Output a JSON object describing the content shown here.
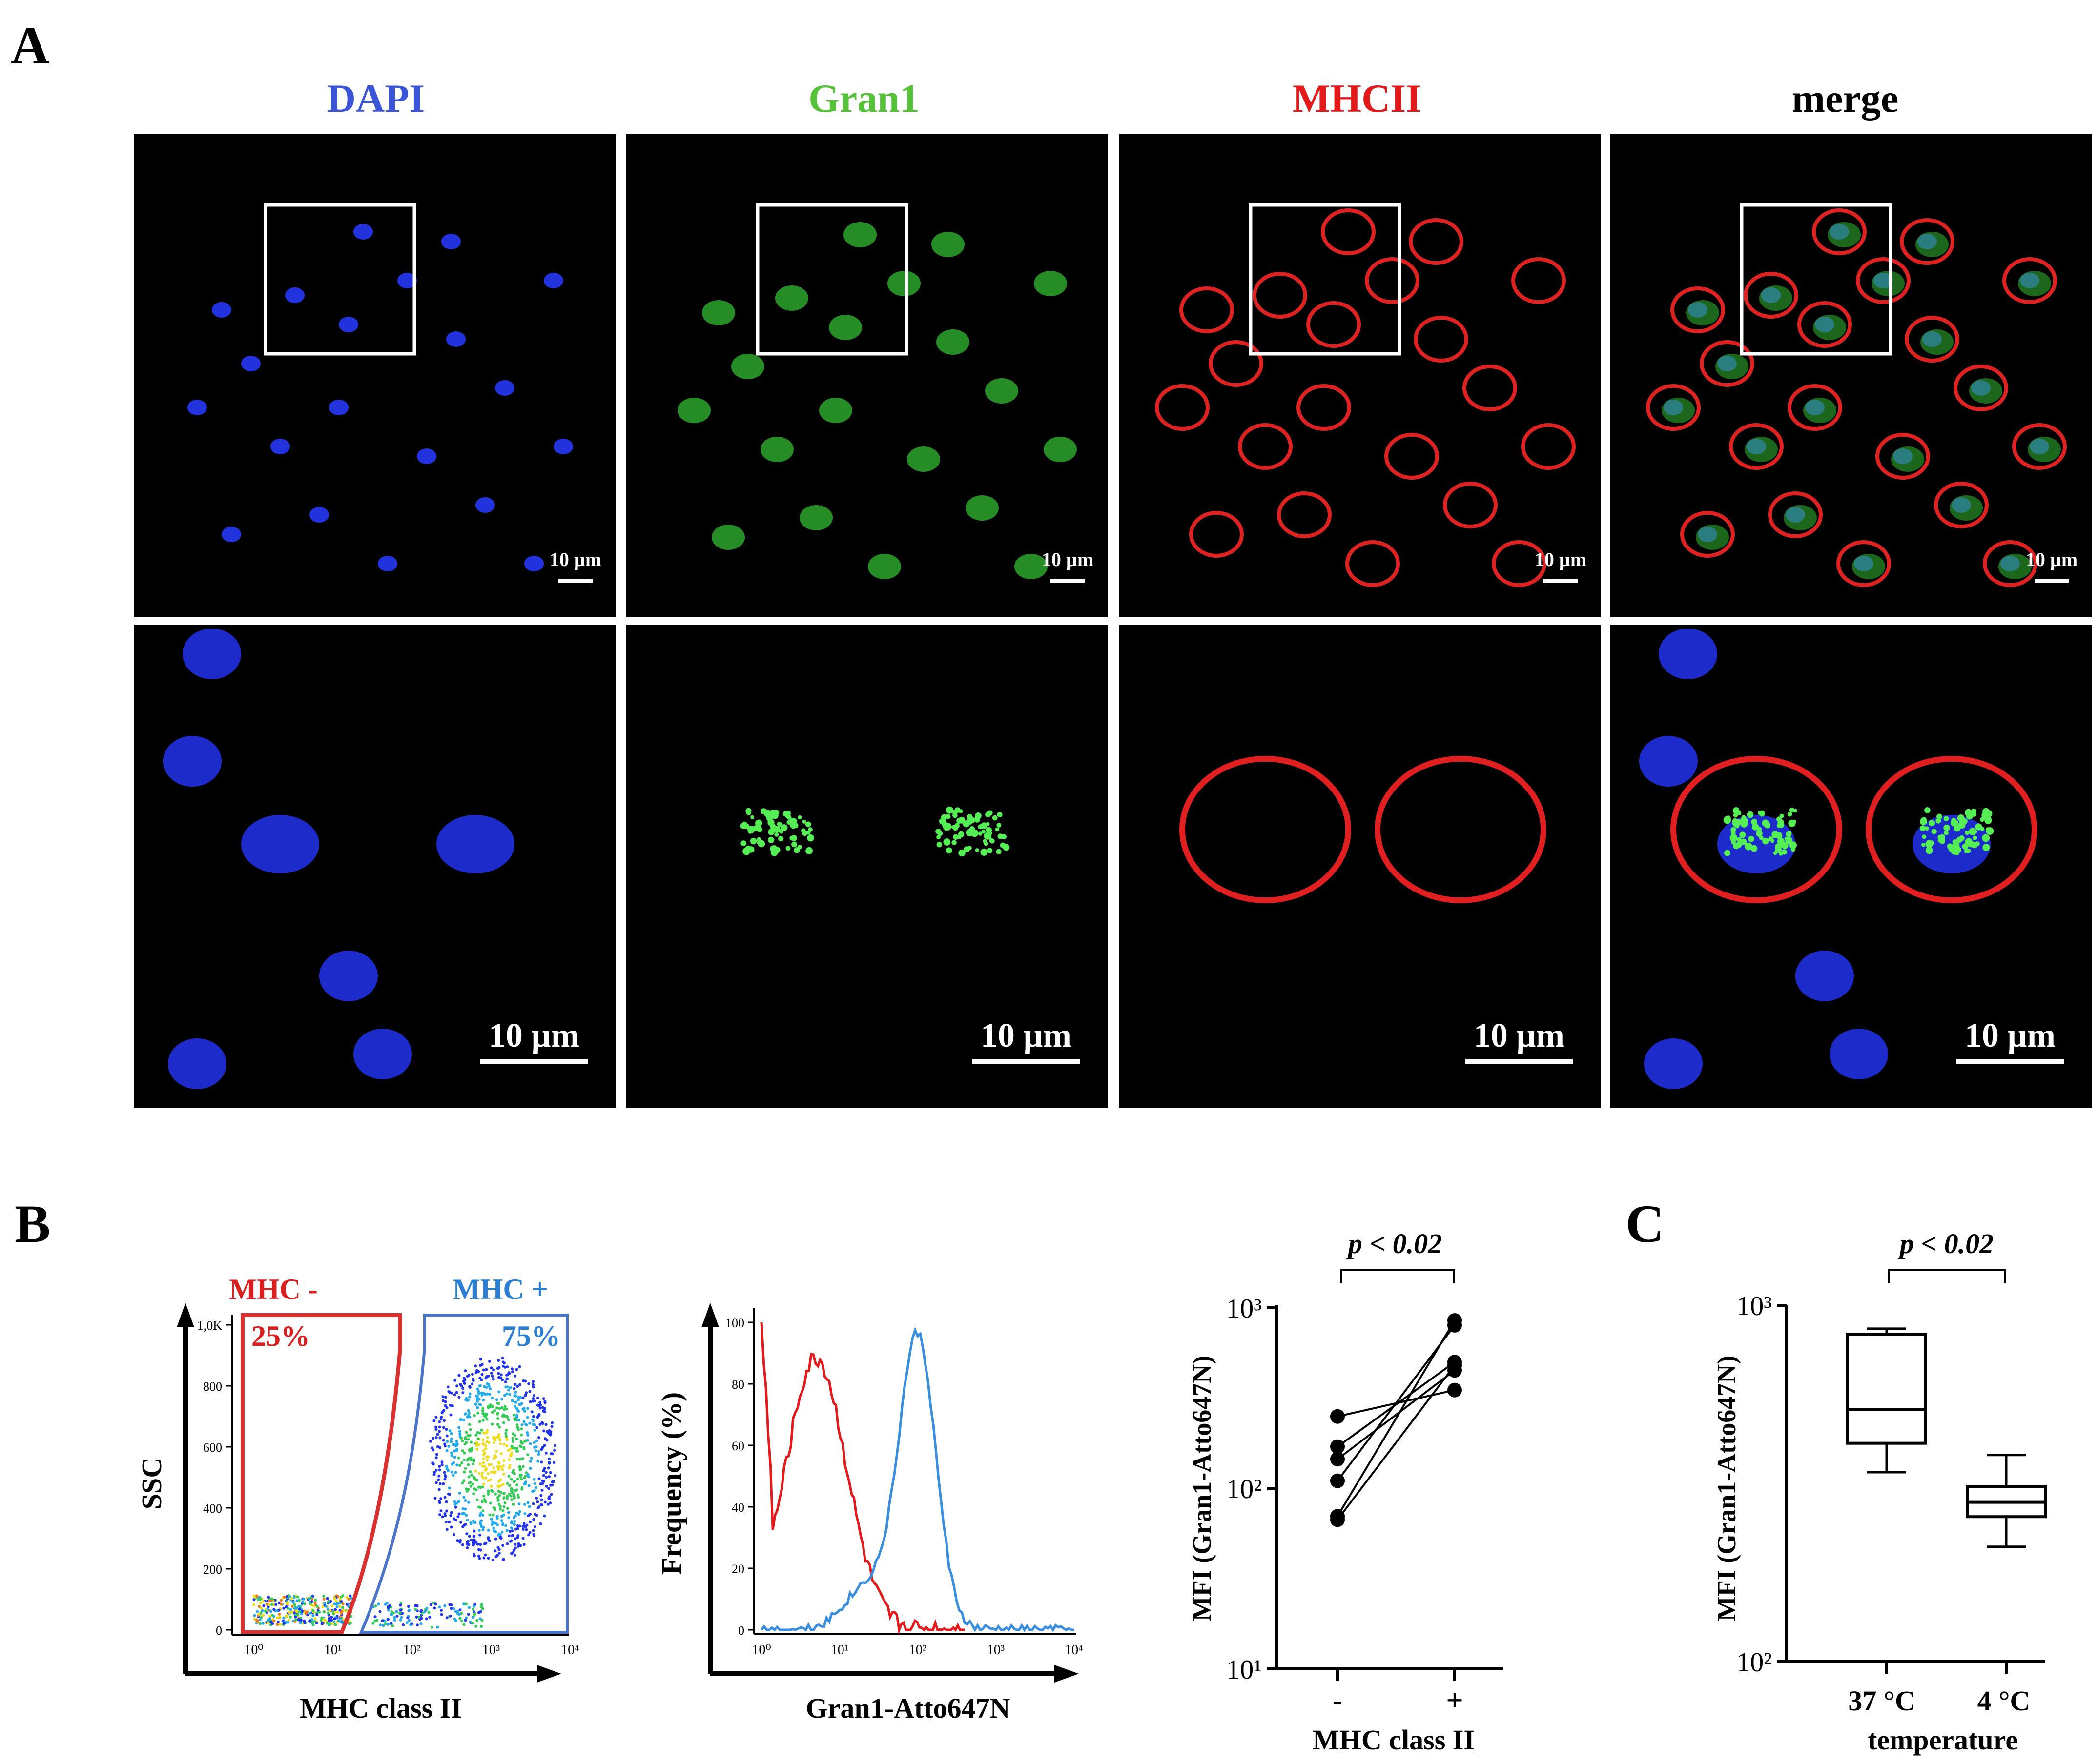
{
  "panels": {
    "A": {
      "letter": "A",
      "channels": [
        {
          "name": "DAPI",
          "color": "#3a55d8"
        },
        {
          "name": "Gran1",
          "color": "#55c23a"
        },
        {
          "name": "MHCII",
          "color": "#e31a1c"
        },
        {
          "name": "merge",
          "color": "#000000"
        }
      ],
      "scalebar_top": "10 µm",
      "scalebar_bottom": "10 µm"
    },
    "B": {
      "letter": "B",
      "dotplot": {
        "ylabel": "SSC",
        "xlabel": "MHC class II",
        "gate_neg_label": "MHC -",
        "gate_pos_label": "MHC +",
        "gate_neg_pct": "25%",
        "gate_pos_pct": "75%",
        "y_ticks": [
          "0",
          "200",
          "400",
          "600",
          "800",
          "1,0K"
        ],
        "x_ticks": [
          "10⁰",
          "10¹",
          "10²",
          "10³",
          "10⁴"
        ]
      },
      "histogram": {
        "ylabel": "Frequency (%)",
        "xlabel": "Gran1-Atto647N",
        "y_ticks": [
          "0",
          "20",
          "40",
          "60",
          "80",
          "100"
        ],
        "x_ticks": [
          "10⁰",
          "10¹",
          "10²",
          "10³",
          "10⁴"
        ],
        "series_colors": {
          "neg": "#e31a1c",
          "pos": "#3a8ee0"
        }
      },
      "paired": {
        "ylabel": "MFI (Gran1-Atto647N)",
        "xlabel": "MHC class II",
        "categories": [
          "-",
          "+"
        ],
        "pvalue": "p < 0.02",
        "y_ticks": [
          "10¹",
          "10²",
          "10³"
        ]
      }
    },
    "C": {
      "letter": "C",
      "ylabel": "MFI (Gran1-Atto647N)",
      "xlabel": "temperature",
      "categories": [
        "37 °C",
        "4 °C"
      ],
      "pvalue": "p < 0.02",
      "y_ticks": [
        "10²",
        "10³"
      ]
    }
  },
  "chart_data": [
    {
      "type": "line",
      "title": "",
      "xlabel": "MHC class II",
      "ylabel": "MFI (Gran1-Atto647N)",
      "yscale": "log",
      "ylim": [
        10,
        1000
      ],
      "categories": [
        "-",
        "+"
      ],
      "series": [
        {
          "values": [
            250,
            350
          ]
        },
        {
          "values": [
            170,
            500
          ]
        },
        {
          "values": [
            145,
            450
          ]
        },
        {
          "values": [
            110,
            800
          ]
        },
        {
          "values": [
            70,
            850
          ]
        },
        {
          "values": [
            67,
            480
          ]
        }
      ],
      "annotation": "p < 0.02"
    },
    {
      "type": "box",
      "title": "",
      "xlabel": "temperature",
      "ylabel": "MFI (Gran1-Atto647N)",
      "yscale": "log",
      "ylim": [
        100,
        1000
      ],
      "categories": [
        "37 °C",
        "4 °C"
      ],
      "boxes": [
        {
          "min": 340,
          "q1": 410,
          "median": 510,
          "q3": 830,
          "max": 860
        },
        {
          "min": 210,
          "q1": 255,
          "median": 280,
          "q3": 310,
          "max": 380
        }
      ],
      "annotation": "p < 0.02"
    }
  ]
}
